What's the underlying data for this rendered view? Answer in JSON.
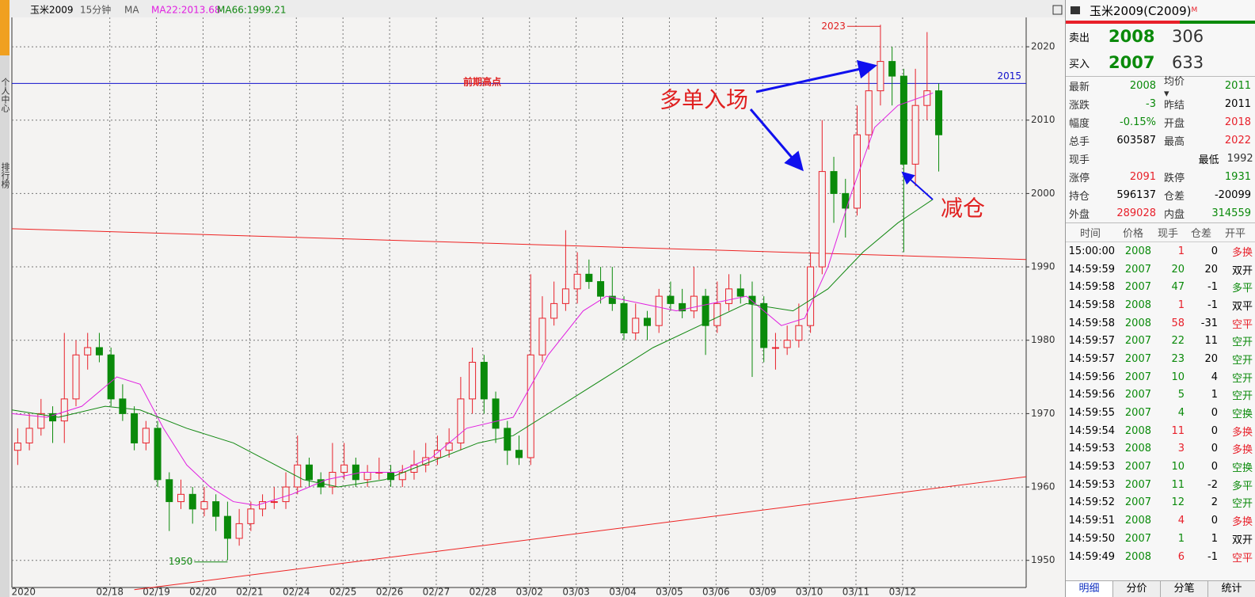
{
  "toolbar": {
    "symbol": "玉米2009",
    "period": "15分钟",
    "indicator": "MA",
    "ma22_label": "MA22:2013.68",
    "ma66_label": "MA66:1999.21"
  },
  "sidebar": [
    "个人中心",
    "排行榜"
  ],
  "chart_data": {
    "type": "candlestick",
    "xlim": [
      0,
      87
    ],
    "ylim": [
      1946.3,
      2024.0
    ],
    "yticks": [
      1950,
      1960,
      1970,
      1980,
      1990,
      2000,
      2010,
      2020
    ],
    "xticks": [
      {
        "value": 1.0,
        "label": "2020"
      },
      {
        "value": 8.4,
        "label": "02/18"
      },
      {
        "value": 12.4,
        "label": "02/19"
      },
      {
        "value": 16.4,
        "label": "02/20"
      },
      {
        "value": 20.4,
        "label": "02/21"
      },
      {
        "value": 24.4,
        "label": "02/24"
      },
      {
        "value": 28.4,
        "label": "02/25"
      },
      {
        "value": 32.4,
        "label": "02/26"
      },
      {
        "value": 36.4,
        "label": "02/27"
      },
      {
        "value": 40.4,
        "label": "02/28"
      },
      {
        "value": 44.4,
        "label": "03/02"
      },
      {
        "value": 48.4,
        "label": "03/03"
      },
      {
        "value": 52.4,
        "label": "03/04"
      },
      {
        "value": 56.4,
        "label": "03/05"
      },
      {
        "value": 60.4,
        "label": "03/06"
      },
      {
        "value": 64.4,
        "label": "03/09"
      },
      {
        "value": 68.4,
        "label": "03/10"
      },
      {
        "value": 72.4,
        "label": "03/11"
      },
      {
        "value": 76.4,
        "label": "03/12"
      }
    ],
    "grid": true,
    "up_color": "#e8202a",
    "down_color": "#0a8a0a",
    "candles": [
      [
        1965,
        1968,
        1963,
        1966
      ],
      [
        1966,
        1970,
        1965,
        1968
      ],
      [
        1968,
        1972,
        1967,
        1970
      ],
      [
        1970,
        1971,
        1966,
        1969
      ],
      [
        1969,
        1981,
        1966,
        1972
      ],
      [
        1972,
        1980,
        1971,
        1978
      ],
      [
        1978,
        1981,
        1976,
        1979
      ],
      [
        1979,
        1981,
        1977,
        1978
      ],
      [
        1978,
        1979,
        1971,
        1972
      ],
      [
        1972,
        1974,
        1969,
        1970
      ],
      [
        1970,
        1971,
        1965,
        1966
      ],
      [
        1966,
        1969,
        1965,
        1968
      ],
      [
        1968,
        1969,
        1960,
        1961
      ],
      [
        1961,
        1962,
        1954,
        1958
      ],
      [
        1958,
        1961,
        1957,
        1959
      ],
      [
        1959,
        1960,
        1955,
        1957
      ],
      [
        1957,
        1960,
        1956,
        1958
      ],
      [
        1958,
        1959,
        1954,
        1956
      ],
      [
        1956,
        1958,
        1950,
        1953
      ],
      [
        1953,
        1957,
        1952,
        1955
      ],
      [
        1955,
        1958,
        1954,
        1957
      ],
      [
        1957,
        1959,
        1956,
        1958
      ],
      [
        1958,
        1960,
        1957,
        1958
      ],
      [
        1958,
        1962,
        1957,
        1960
      ],
      [
        1960,
        1967,
        1959,
        1963
      ],
      [
        1963,
        1964,
        1960,
        1961
      ],
      [
        1961,
        1962,
        1959,
        1960
      ],
      [
        1960,
        1966,
        1959,
        1962
      ],
      [
        1962,
        1966,
        1961,
        1963
      ],
      [
        1963,
        1964,
        1960,
        1961
      ],
      [
        1961,
        1963,
        1960,
        1962
      ],
      [
        1962,
        1964,
        1961,
        1962
      ],
      [
        1962,
        1963,
        1960,
        1961
      ],
      [
        1961,
        1963,
        1960,
        1962
      ],
      [
        1962,
        1965,
        1961,
        1963
      ],
      [
        1963,
        1966,
        1962,
        1964
      ],
      [
        1964,
        1967,
        1963,
        1965
      ],
      [
        1965,
        1968,
        1964,
        1966
      ],
      [
        1966,
        1975,
        1965,
        1972
      ],
      [
        1972,
        1979,
        1970,
        1977
      ],
      [
        1977,
        1978,
        1970,
        1972
      ],
      [
        1972,
        1973,
        1966,
        1968
      ],
      [
        1968,
        1969,
        1963,
        1965
      ],
      [
        1965,
        1967,
        1963,
        1964
      ],
      [
        1964,
        1989,
        1963,
        1978
      ],
      [
        1978,
        1986,
        1977,
        1983
      ],
      [
        1983,
        1988,
        1982,
        1985
      ],
      [
        1985,
        1995,
        1984,
        1987
      ],
      [
        1987,
        1992,
        1985,
        1989
      ],
      [
        1989,
        1991,
        1987,
        1988
      ],
      [
        1988,
        1990,
        1985,
        1986
      ],
      [
        1986,
        1990,
        1984,
        1985
      ],
      [
        1985,
        1986,
        1980,
        1981
      ],
      [
        1981,
        1985,
        1980,
        1983
      ],
      [
        1983,
        1984,
        1980,
        1982
      ],
      [
        1982,
        1987,
        1981,
        1986
      ],
      [
        1986,
        1988,
        1984,
        1985
      ],
      [
        1985,
        1987,
        1983,
        1984
      ],
      [
        1984,
        1990,
        1983,
        1986
      ],
      [
        1986,
        1987,
        1978,
        1982
      ],
      [
        1982,
        1988,
        1981,
        1985
      ],
      [
        1985,
        1989,
        1984,
        1987
      ],
      [
        1987,
        1989,
        1985,
        1986
      ],
      [
        1986,
        1988,
        1975,
        1985
      ],
      [
        1985,
        1986,
        1977,
        1979
      ],
      [
        1979,
        1981,
        1976,
        1979
      ],
      [
        1979,
        1982,
        1978,
        1980
      ],
      [
        1980,
        1985,
        1979,
        1982
      ],
      [
        1982,
        1992,
        1981,
        1990
      ],
      [
        1990,
        2010,
        1989,
        2003
      ],
      [
        2003,
        2005,
        1996,
        2000
      ],
      [
        2000,
        2002,
        1994,
        1998
      ],
      [
        1998,
        2012,
        1997,
        2008
      ],
      [
        2008,
        2017,
        2006,
        2014
      ],
      [
        2014,
        2023,
        2012,
        2018
      ],
      [
        2018,
        2020,
        2012,
        2016
      ],
      [
        2016,
        2017,
        1992,
        2004
      ],
      [
        2004,
        2017,
        2001,
        2012
      ],
      [
        2012,
        2022,
        2010,
        2014
      ],
      [
        2014,
        2015,
        2003,
        2008
      ]
    ],
    "ma22": {
      "color": "#e020e0",
      "x": [
        0,
        3,
        6,
        9,
        11,
        13,
        15,
        17,
        19,
        21,
        24,
        27,
        30,
        33,
        36,
        39,
        43,
        46,
        49,
        51,
        54,
        57,
        60,
        63,
        66,
        68,
        70,
        72,
        74,
        76,
        79
      ],
      "values": [
        1970,
        1969.5,
        1971,
        1975,
        1974,
        1968,
        1963,
        1960,
        1958,
        1957.5,
        1959,
        1961,
        1962,
        1962,
        1964,
        1968,
        1969.5,
        1978,
        1984,
        1986,
        1985,
        1984,
        1985,
        1986,
        1982,
        1983,
        1990,
        2000,
        2009,
        2012,
        2013.7
      ]
    },
    "ma66": {
      "color": "#118811",
      "x": [
        0,
        4,
        8,
        11,
        15,
        19,
        22,
        25,
        28,
        32,
        36,
        40,
        43,
        47,
        51,
        55,
        59,
        63,
        67,
        70,
        73,
        76,
        79
      ],
      "values": [
        1970.5,
        1969.5,
        1971,
        1970.5,
        1968,
        1966,
        1963.5,
        1961,
        1960,
        1961,
        1963.5,
        1966,
        1967,
        1971,
        1975,
        1979,
        1982,
        1985,
        1984,
        1987,
        1992,
        1996,
        1999.2
      ]
    },
    "trendlines": [
      {
        "color": "#ee2222",
        "x": [
          0,
          87
        ],
        "values": [
          1995.2,
          1991.0
        ]
      },
      {
        "color": "#ee2222",
        "x": [
          10.5,
          87
        ],
        "values": [
          1946.0,
          1961.4
        ]
      }
    ],
    "level_line": {
      "value": 2015,
      "color": "#1010cc"
    },
    "high_mark": {
      "value": 2023,
      "x": 74
    },
    "low_mark": {
      "value": 1950,
      "x": 18
    },
    "annotations": {
      "previous_high": "前期高点",
      "long_entry": "多单入场",
      "reduce": "减仓"
    }
  },
  "quote": {
    "title": "玉米2009(C2009)",
    "title_mark": "M",
    "sell": {
      "label": "卖出",
      "price": "2008",
      "volume": "306"
    },
    "buy": {
      "label": "买入",
      "price": "2007",
      "volume": "633"
    },
    "stats": [
      [
        {
          "t": "最新"
        },
        {
          "t": "2008",
          "c": "g"
        },
        {
          "t": "均价 ▾"
        },
        {
          "t": "2011",
          "c": "g"
        }
      ],
      [
        {
          "t": "涨跌"
        },
        {
          "t": "-3",
          "c": "g"
        },
        {
          "t": "昨结"
        },
        {
          "t": "2011"
        }
      ],
      [
        {
          "t": "幅度"
        },
        {
          "t": "-0.15%",
          "c": "g"
        },
        {
          "t": "开盘"
        },
        {
          "t": "2018",
          "c": "r"
        }
      ],
      [
        {
          "t": "总手"
        },
        {
          "t": "603587"
        },
        {
          "t": "最高"
        },
        {
          "t": "2022",
          "c": "r"
        }
      ],
      [
        {
          "t": "现手"
        },
        {
          "t": "最低"
        },
        {
          "t": "1992",
          "c": "g"
        }
      ],
      [
        {
          "t": "涨停"
        },
        {
          "t": "2091",
          "c": "r"
        },
        {
          "t": "跌停"
        },
        {
          "t": "1931",
          "c": "g"
        }
      ],
      [
        {
          "t": "持仓"
        },
        {
          "t": "596137"
        },
        {
          "t": "仓差"
        },
        {
          "t": "-20099"
        }
      ],
      [
        {
          "t": "外盘"
        },
        {
          "t": "289028",
          "c": "r"
        },
        {
          "t": "内盘"
        },
        {
          "t": "314559",
          "c": "g"
        }
      ]
    ],
    "ticks_header": [
      "时间",
      "价格",
      "现手",
      "仓差",
      "开平"
    ],
    "ticks": [
      [
        "15:00:00",
        "2008",
        "1",
        "0",
        "多换",
        "r",
        "r"
      ],
      [
        "14:59:59",
        "2007",
        "20",
        "20",
        "双开",
        "g",
        "k"
      ],
      [
        "14:59:58",
        "2007",
        "47",
        "-1",
        "多平",
        "g",
        "g"
      ],
      [
        "14:59:58",
        "2008",
        "1",
        "-1",
        "双平",
        "r",
        "k"
      ],
      [
        "14:59:58",
        "2008",
        "58",
        "-31",
        "空平",
        "r",
        "r"
      ],
      [
        "14:59:57",
        "2007",
        "22",
        "11",
        "空开",
        "g",
        "g"
      ],
      [
        "14:59:57",
        "2007",
        "23",
        "20",
        "空开",
        "g",
        "g"
      ],
      [
        "14:59:56",
        "2007",
        "10",
        "4",
        "空开",
        "g",
        "g"
      ],
      [
        "14:59:56",
        "2007",
        "5",
        "1",
        "空开",
        "g",
        "g"
      ],
      [
        "14:59:55",
        "2007",
        "4",
        "0",
        "空换",
        "g",
        "g"
      ],
      [
        "14:59:54",
        "2008",
        "11",
        "0",
        "多换",
        "r",
        "r"
      ],
      [
        "14:59:53",
        "2008",
        "3",
        "0",
        "多换",
        "r",
        "r"
      ],
      [
        "14:59:53",
        "2007",
        "10",
        "0",
        "空换",
        "g",
        "g"
      ],
      [
        "14:59:53",
        "2007",
        "11",
        "-2",
        "多平",
        "g",
        "g"
      ],
      [
        "14:59:52",
        "2007",
        "12",
        "2",
        "空开",
        "g",
        "g"
      ],
      [
        "14:59:51",
        "2008",
        "4",
        "0",
        "多换",
        "r",
        "r"
      ],
      [
        "14:59:50",
        "2007",
        "1",
        "1",
        "双开",
        "g",
        "k"
      ],
      [
        "14:59:49",
        "2008",
        "6",
        "-1",
        "空平",
        "r",
        "r"
      ]
    ],
    "tabs": [
      "明细",
      "分价",
      "分笔",
      "统计"
    ]
  }
}
